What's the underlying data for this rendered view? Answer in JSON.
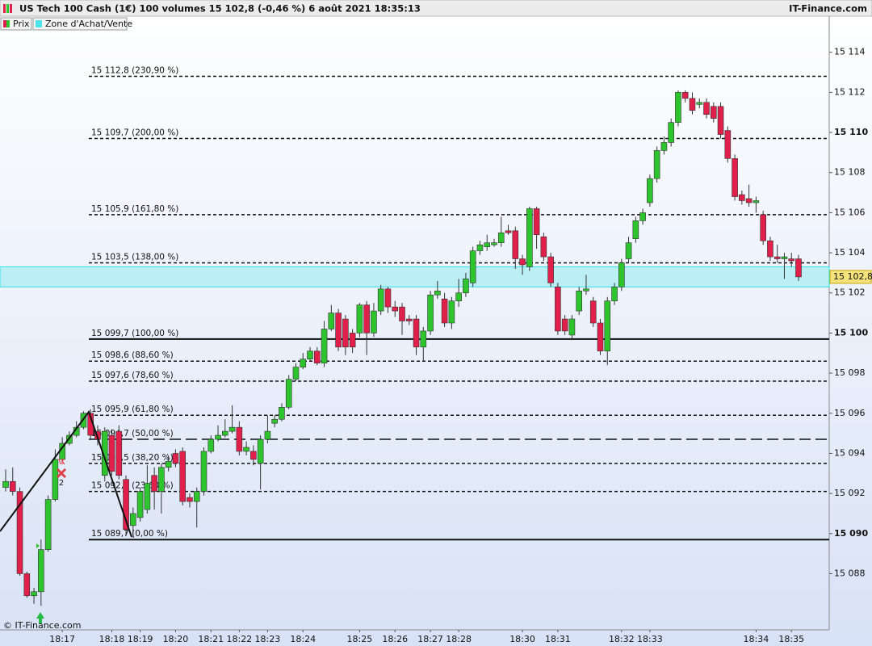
{
  "header": {
    "title": "US Tech 100 Cash (1€) 100 volumes 15 102,8 (-0,46 %) 6 août 2021 18:35:13",
    "brand": "IT-Finance.com"
  },
  "chart_data": {
    "type": "candlestick",
    "categories": [
      null,
      null,
      null,
      null,
      null,
      null,
      null,
      null,
      "18:17",
      null,
      null,
      null,
      null,
      null,
      null,
      "18:18",
      null,
      null,
      null,
      "18:19",
      null,
      null,
      null,
      null,
      "18:20",
      null,
      null,
      null,
      null,
      "18:21",
      null,
      null,
      null,
      "18:22",
      null,
      null,
      null,
      "18:23",
      null,
      null,
      null,
      null,
      "18:24",
      null,
      null,
      null,
      null,
      null,
      null,
      null,
      "18:25",
      null,
      null,
      null,
      null,
      "18:26",
      null,
      null,
      null,
      null,
      "18:27",
      null,
      null,
      null,
      "18:28",
      null,
      null,
      null,
      null,
      null,
      null,
      null,
      null,
      "18:30",
      null,
      null,
      null,
      null,
      "18:31",
      null,
      null,
      null,
      null,
      null,
      null,
      null,
      null,
      "18:32",
      null,
      null,
      null,
      "18:33",
      null,
      null,
      null,
      null,
      null,
      null,
      null,
      null,
      null,
      null,
      null,
      null,
      null,
      null,
      "18:34",
      null,
      null,
      null,
      null,
      "18:35",
      null
    ],
    "series": [
      {
        "name": "Prix",
        "up_color": "#2ec42e",
        "down_color": "#e0204a",
        "open": [
          15092.3,
          15092.6,
          15092.1,
          15088.0,
          15086.9,
          15087.1,
          15089.2,
          15091.7,
          15093.7,
          15094.5,
          15094.9,
          15095.3,
          15096.0,
          15095.1,
          15092.9,
          15094.9,
          15095.1,
          15092.7,
          15090.4,
          15090.8,
          15091.2,
          15092.9,
          15092.1,
          15093.3,
          15094.0,
          15094.1,
          15091.8,
          15091.6,
          15092.1,
          15094.1,
          15094.7,
          15094.9,
          15095.1,
          15095.3,
          15094.1,
          15094.1,
          15093.5,
          15094.7,
          15095.5,
          15095.7,
          15096.3,
          15097.7,
          15098.3,
          15098.7,
          15099.1,
          15098.5,
          15100.2,
          15101.0,
          15100.7,
          15100.0,
          15100.0,
          15101.4,
          15100.0,
          15101.1,
          15102.2,
          15101.3,
          15101.3,
          15100.7,
          15100.7,
          15099.3,
          15100.1,
          15101.9,
          15101.7,
          15100.5,
          15101.6,
          15102.0,
          15102.5,
          15104.1,
          15104.3,
          15104.4,
          15104.5,
          15105.1,
          15105.1,
          15103.7,
          15103.3,
          15106.2,
          15104.8,
          15103.8,
          15102.3,
          15100.7,
          15099.9,
          15101.1,
          15102.1,
          15101.6,
          15100.5,
          15099.1,
          15101.6,
          15102.3,
          15103.7,
          15104.7,
          15105.6,
          15106.5,
          15107.7,
          15109.1,
          15109.5,
          15110.5,
          15112.0,
          15111.7,
          15111.4,
          15111.5,
          15111.3,
          15111.3,
          15110.1,
          15108.7,
          15106.9,
          15106.7,
          15106.5,
          15105.9,
          15104.6,
          15103.8,
          15103.7,
          15103.7,
          15103.7
        ],
        "high": [
          15093.2,
          15093.3,
          15092.3,
          15088.1,
          15087.3,
          15089.7,
          15091.9,
          15094.2,
          15094.8,
          15095.1,
          15095.6,
          15096.1,
          15096.2,
          15095.4,
          15095.3,
          15095.2,
          15095.4,
          15092.9,
          15091.3,
          15092.3,
          15093.4,
          15093.3,
          15093.5,
          15093.9,
          15094.2,
          15094.3,
          15092.0,
          15092.3,
          15094.3,
          15094.9,
          15095.4,
          15095.7,
          15096.4,
          15095.6,
          15094.6,
          15094.4,
          15094.9,
          15095.9,
          15095.9,
          15096.5,
          15097.9,
          15098.5,
          15099.0,
          15099.3,
          15099.3,
          15100.6,
          15101.4,
          15101.2,
          15100.9,
          15100.2,
          15101.5,
          15101.6,
          15101.5,
          15102.4,
          15102.3,
          15101.6,
          15101.5,
          15100.9,
          15100.9,
          15100.3,
          15102.1,
          15102.6,
          15102.0,
          15101.8,
          15102.7,
          15103.0,
          15104.3,
          15104.6,
          15104.9,
          15104.7,
          15105.8,
          15105.4,
          15105.3,
          15103.9,
          15106.3,
          15106.3,
          15105.0,
          15104.0,
          15102.5,
          15100.9,
          15100.9,
          15102.3,
          15102.9,
          15101.8,
          15100.7,
          15101.8,
          15102.5,
          15103.7,
          15104.8,
          15105.8,
          15106.2,
          15107.9,
          15109.3,
          15109.8,
          15110.7,
          15112.1,
          15112.1,
          15112.0,
          15111.7,
          15111.7,
          15111.5,
          15111.5,
          15110.3,
          15108.9,
          15107.1,
          15107.4,
          15106.8,
          15106.1,
          15104.8,
          15104.4,
          15104.0,
          15104.0,
          15103.9
        ],
        "low": [
          15092.1,
          15091.9,
          15087.9,
          15086.8,
          15086.5,
          15086.4,
          15089.1,
          15091.6,
          15093.6,
          15094.4,
          15094.8,
          15095.2,
          15094.7,
          15094.4,
          15092.6,
          15092.9,
          15092.7,
          15089.9,
          15089.8,
          15090.6,
          15091.0,
          15091.2,
          15091.0,
          15093.1,
          15093.3,
          15091.4,
          15091.3,
          15090.3,
          15091.9,
          15094.0,
          15094.6,
          15094.8,
          15095.0,
          15093.9,
          15093.9,
          15093.4,
          15092.2,
          15094.5,
          15095.3,
          15095.6,
          15096.2,
          15097.6,
          15098.2,
          15098.6,
          15098.4,
          15098.3,
          15100.1,
          15099.1,
          15098.9,
          15099.0,
          15099.8,
          15098.9,
          15099.8,
          15100.9,
          15101.0,
          15100.8,
          15099.9,
          15100.4,
          15098.9,
          15098.6,
          15099.9,
          15101.7,
          15100.3,
          15100.2,
          15101.3,
          15101.8,
          15102.3,
          15103.9,
          15104.1,
          15104.3,
          15104.3,
          15104.9,
          15103.2,
          15102.9,
          15103.1,
          15104.2,
          15103.6,
          15102.3,
          15099.9,
          15099.9,
          15099.7,
          15100.9,
          15101.9,
          15100.3,
          15098.9,
          15098.4,
          15101.4,
          15102.1,
          15103.5,
          15104.5,
          15105.4,
          15106.3,
          15107.5,
          15108.9,
          15109.3,
          15110.3,
          15111.5,
          15110.9,
          15111.2,
          15110.7,
          15110.5,
          15109.7,
          15108.5,
          15106.6,
          15106.4,
          15106.3,
          15106.0,
          15104.4,
          15103.6,
          15103.5,
          15102.7,
          15103.3,
          15102.6
        ],
        "close": [
          15092.6,
          15092.1,
          15088.0,
          15086.9,
          15087.1,
          15089.2,
          15091.7,
          15093.7,
          15094.5,
          15094.9,
          15095.3,
          15096.0,
          15094.9,
          15094.7,
          15095.1,
          15093.1,
          15092.9,
          15090.2,
          15091.0,
          15092.1,
          15092.5,
          15092.1,
          15093.3,
          15093.6,
          15093.5,
          15091.6,
          15091.6,
          15092.1,
          15094.1,
          15094.7,
          15094.9,
          15095.1,
          15095.3,
          15094.1,
          15094.3,
          15093.7,
          15094.7,
          15095.1,
          15095.7,
          15096.3,
          15097.7,
          15098.3,
          15098.7,
          15099.1,
          15098.5,
          15100.2,
          15101.0,
          15099.3,
          15099.3,
          15099.3,
          15101.4,
          15100.0,
          15101.1,
          15102.2,
          15101.3,
          15101.1,
          15100.6,
          15100.6,
          15099.3,
          15100.1,
          15101.9,
          15102.1,
          15100.5,
          15101.6,
          15102.0,
          15102.7,
          15104.1,
          15104.4,
          15104.5,
          15104.5,
          15105.0,
          15105.0,
          15103.7,
          15103.4,
          15106.2,
          15104.9,
          15103.8,
          15102.5,
          15100.1,
          15100.1,
          15100.7,
          15102.1,
          15102.2,
          15100.5,
          15099.1,
          15101.6,
          15102.3,
          15103.5,
          15104.5,
          15105.6,
          15106.0,
          15107.7,
          15109.1,
          15109.5,
          15110.5,
          15112.0,
          15111.7,
          15111.1,
          15111.5,
          15110.9,
          15110.7,
          15109.9,
          15108.7,
          15106.8,
          15106.6,
          15106.5,
          15106.6,
          15104.6,
          15103.8,
          15103.7,
          15103.8,
          15103.6,
          15102.8
        ]
      }
    ],
    "zone": {
      "name": "Zone d'Achat/Vente",
      "color": "#7ee8ee",
      "values": [
        15102.3,
        15103.3
      ]
    },
    "levels": [
      {
        "value": 15112.8,
        "label": "15 112,8 (230,90 %)",
        "style": "dashed"
      },
      {
        "value": 15109.7,
        "label": "15 109,7 (200,00 %)",
        "style": "dashed"
      },
      {
        "value": 15105.9,
        "label": "15 105,9 (161,80 %)",
        "style": "dashed"
      },
      {
        "value": 15103.5,
        "label": "15 103,5 (138,00 %)",
        "style": "dashed"
      },
      {
        "value": 15099.7,
        "label": "15 099,7 (100,00 %)",
        "style": "solid"
      },
      {
        "value": 15098.6,
        "label": "15 098,6 (88,60 %)",
        "style": "dashed"
      },
      {
        "value": 15097.6,
        "label": "15 097,6 (78,60 %)",
        "style": "dashed"
      },
      {
        "value": 15095.9,
        "label": "15 095,9 (61,80 %)",
        "style": "dashed"
      },
      {
        "value": 15094.7,
        "label": "15 094,7 (50,00 %)",
        "style": "longdash"
      },
      {
        "value": 15093.5,
        "label": "15 093,5 (38,20 %)",
        "style": "dashed"
      },
      {
        "value": 15092.1,
        "label": "15 092,1 (23,60 %)",
        "style": "dashed"
      },
      {
        "value": 15089.7,
        "label": "15 089,7 (0,00 %)",
        "style": "solid"
      }
    ],
    "last_price": {
      "value": 15102.8,
      "label": "15 102,8"
    },
    "ylim": [
      15085.2,
      15115.8
    ],
    "yticks": [
      {
        "value": 15088,
        "label": "15 088"
      },
      {
        "value": 15090,
        "label": "15 090",
        "bold": true
      },
      {
        "value": 15092,
        "label": "15 092"
      },
      {
        "value": 15094,
        "label": "15 094"
      },
      {
        "value": 15096,
        "label": "15 096"
      },
      {
        "value": 15098,
        "label": "15 098"
      },
      {
        "value": 15100,
        "label": "15 100",
        "bold": true
      },
      {
        "value": 15102,
        "label": "15 102"
      },
      {
        "value": 15104,
        "label": "15 104"
      },
      {
        "value": 15106,
        "label": "15 106"
      },
      {
        "value": 15108,
        "label": "15 108"
      },
      {
        "value": 15110,
        "label": "15 110",
        "bold": true
      },
      {
        "value": 15112,
        "label": "15 112"
      },
      {
        "value": 15114,
        "label": "15 114"
      }
    ],
    "signal_label": "2",
    "watermark": "© IT-Finance.com"
  }
}
